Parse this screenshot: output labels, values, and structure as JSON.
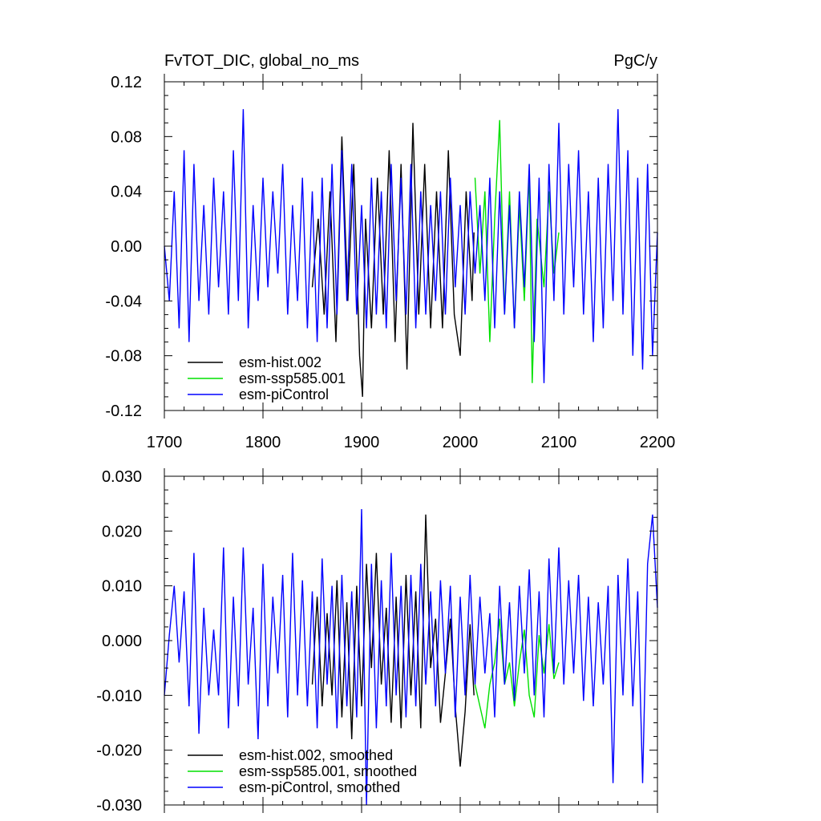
{
  "chart_data": [
    {
      "type": "line",
      "title": "FvTOT_DIC, global_no_ms",
      "units": "PgC/y",
      "xlim": [
        1700,
        2200
      ],
      "ylim": [
        -0.12,
        0.12
      ],
      "xticks": [
        1700,
        1800,
        1900,
        2000,
        2100,
        2200
      ],
      "xtick_labels": [
        "1700",
        "1800",
        "1900",
        "2000",
        "2100",
        "2200"
      ],
      "yticks": [
        -0.12,
        -0.08,
        -0.04,
        0.0,
        0.04,
        0.08,
        0.12
      ],
      "ytick_labels": [
        "-0.12",
        "-0.08",
        "-0.04",
        "0.00",
        "0.04",
        "0.08",
        "0.12"
      ],
      "grid": false,
      "legend_position": "bottom-left",
      "series": [
        {
          "name": "esm-hist.002",
          "color": "#000000",
          "x": [
            1850,
            1856,
            1862,
            1868,
            1874,
            1880,
            1886,
            1892,
            1898,
            1901,
            1904,
            1910,
            1916,
            1922,
            1928,
            1934,
            1940,
            1946,
            1952,
            1958,
            1964,
            1970,
            1976,
            1982,
            1988,
            1994,
            2000,
            2006,
            2012,
            2014
          ],
          "y": [
            -0.03,
            0.02,
            -0.05,
            0.04,
            -0.07,
            0.08,
            -0.04,
            0.06,
            -0.08,
            -0.11,
            0.02,
            -0.06,
            0.05,
            -0.05,
            0.07,
            -0.07,
            0.06,
            -0.09,
            0.09,
            -0.05,
            0.06,
            -0.06,
            0.04,
            -0.06,
            0.07,
            -0.05,
            -0.08,
            0.04,
            -0.04,
            0.01
          ]
        },
        {
          "name": "esm-ssp585.001",
          "color": "#00e000",
          "x": [
            2015,
            2020,
            2025,
            2030,
            2035,
            2040,
            2045,
            2050,
            2055,
            2060,
            2065,
            2070,
            2073,
            2078,
            2085,
            2090,
            2095,
            2100
          ],
          "y": [
            0.05,
            -0.02,
            0.04,
            -0.07,
            0.02,
            0.092,
            -0.05,
            0.04,
            -0.06,
            0.03,
            -0.04,
            0.055,
            -0.1,
            0.02,
            -0.03,
            0.04,
            -0.02,
            0.01
          ]
        },
        {
          "name": "esm-piControl",
          "color": "#0000ff",
          "x": [
            1700,
            1705,
            1710,
            1715,
            1720,
            1725,
            1730,
            1735,
            1740,
            1745,
            1750,
            1755,
            1760,
            1765,
            1770,
            1775,
            1780,
            1785,
            1790,
            1795,
            1800,
            1805,
            1810,
            1815,
            1820,
            1825,
            1830,
            1835,
            1840,
            1845,
            1850,
            1855,
            1860,
            1865,
            1870,
            1875,
            1880,
            1885,
            1890,
            1895,
            1900,
            1905,
            1910,
            1915,
            1920,
            1925,
            1930,
            1935,
            1940,
            1945,
            1950,
            1955,
            1960,
            1965,
            1970,
            1975,
            1980,
            1985,
            1990,
            1995,
            2000,
            2005,
            2010,
            2015,
            2020,
            2025,
            2030,
            2035,
            2040,
            2045,
            2050,
            2055,
            2060,
            2065,
            2070,
            2075,
            2080,
            2085,
            2090,
            2095,
            2100,
            2105,
            2110,
            2115,
            2120,
            2125,
            2130,
            2135,
            2140,
            2145,
            2150,
            2155,
            2160,
            2165,
            2170,
            2175,
            2180,
            2185,
            2190,
            2195,
            2200
          ],
          "y": [
            0.0,
            -0.04,
            0.04,
            -0.06,
            0.07,
            -0.07,
            0.06,
            -0.04,
            0.03,
            -0.05,
            0.05,
            -0.03,
            0.04,
            -0.05,
            0.07,
            -0.04,
            0.1,
            -0.06,
            0.03,
            -0.04,
            0.05,
            -0.03,
            0.04,
            -0.02,
            0.06,
            -0.05,
            0.03,
            -0.04,
            0.05,
            -0.06,
            0.04,
            -0.07,
            0.05,
            -0.06,
            0.06,
            -0.05,
            0.07,
            -0.04,
            0.06,
            -0.05,
            0.03,
            -0.06,
            0.05,
            -0.05,
            0.04,
            -0.06,
            0.06,
            -0.04,
            0.05,
            -0.05,
            0.06,
            -0.06,
            0.04,
            -0.05,
            0.03,
            -0.04,
            0.04,
            -0.05,
            0.05,
            -0.03,
            0.03,
            -0.05,
            0.04,
            -0.02,
            0.03,
            -0.04,
            0.05,
            -0.06,
            0.04,
            -0.05,
            0.03,
            -0.06,
            0.04,
            -0.03,
            0.06,
            -0.07,
            0.05,
            -0.1,
            0.06,
            -0.04,
            0.09,
            -0.05,
            0.06,
            -0.03,
            0.07,
            -0.05,
            0.04,
            -0.07,
            0.05,
            -0.06,
            0.06,
            -0.04,
            0.1,
            -0.05,
            0.07,
            -0.08,
            0.05,
            -0.09,
            0.06,
            -0.08,
            0.01
          ]
        }
      ]
    },
    {
      "type": "line",
      "title": "",
      "xlim": [
        1700,
        2200
      ],
      "ylim": [
        -0.03,
        0.03
      ],
      "yticks": [
        -0.03,
        -0.02,
        -0.01,
        0.0,
        0.01,
        0.02,
        0.03
      ],
      "ytick_labels": [
        "-0.030",
        "-0.020",
        "-0.010",
        "0.000",
        "0.010",
        "0.020",
        "0.030"
      ],
      "grid": false,
      "legend_position": "bottom-left",
      "series": [
        {
          "name": "esm-hist.002, smoothed",
          "color": "#000000",
          "x": [
            1850,
            1855,
            1860,
            1865,
            1870,
            1875,
            1880,
            1885,
            1890,
            1895,
            1900,
            1905,
            1910,
            1915,
            1920,
            1925,
            1930,
            1935,
            1940,
            1945,
            1950,
            1955,
            1960,
            1965,
            1970,
            1975,
            1980,
            1985,
            1990,
            1995,
            2000,
            2005,
            2010,
            2014
          ],
          "y": [
            -0.008,
            0.008,
            -0.012,
            0.005,
            -0.01,
            0.011,
            -0.014,
            0.007,
            -0.018,
            0.01,
            -0.012,
            0.014,
            -0.005,
            0.016,
            -0.008,
            0.006,
            -0.015,
            0.008,
            -0.016,
            0.012,
            -0.01,
            0.009,
            -0.016,
            0.023,
            -0.005,
            0.004,
            -0.015,
            -0.006,
            0.004,
            -0.012,
            -0.023,
            -0.013,
            0.003,
            -0.01
          ]
        },
        {
          "name": "esm-ssp585.001, smoothed",
          "color": "#00e000",
          "x": [
            2015,
            2020,
            2025,
            2030,
            2035,
            2040,
            2045,
            2050,
            2055,
            2060,
            2065,
            2070,
            2075,
            2080,
            2085,
            2090,
            2095,
            2100
          ],
          "y": [
            -0.008,
            -0.012,
            -0.016,
            -0.008,
            -0.004,
            0.004,
            -0.008,
            -0.004,
            -0.012,
            -0.004,
            0.002,
            -0.01,
            -0.014,
            0.001,
            -0.006,
            0.003,
            -0.007,
            -0.004
          ]
        },
        {
          "name": "esm-piControl, smoothed",
          "color": "#0000ff",
          "x": [
            1700,
            1705,
            1710,
            1715,
            1720,
            1725,
            1730,
            1735,
            1740,
            1745,
            1750,
            1755,
            1760,
            1765,
            1770,
            1775,
            1780,
            1785,
            1790,
            1795,
            1800,
            1805,
            1810,
            1815,
            1820,
            1825,
            1830,
            1835,
            1840,
            1845,
            1850,
            1855,
            1860,
            1865,
            1870,
            1875,
            1880,
            1885,
            1890,
            1895,
            1900,
            1905,
            1910,
            1915,
            1920,
            1925,
            1930,
            1935,
            1940,
            1945,
            1950,
            1955,
            1960,
            1965,
            1970,
            1975,
            1980,
            1985,
            1990,
            1995,
            2000,
            2005,
            2010,
            2015,
            2020,
            2025,
            2030,
            2035,
            2040,
            2045,
            2050,
            2055,
            2060,
            2065,
            2070,
            2075,
            2080,
            2085,
            2090,
            2095,
            2100,
            2105,
            2110,
            2115,
            2120,
            2125,
            2130,
            2135,
            2140,
            2145,
            2150,
            2155,
            2160,
            2165,
            2170,
            2175,
            2180,
            2185,
            2190,
            2195,
            2200
          ],
          "y": [
            -0.01,
            0.001,
            0.01,
            -0.004,
            0.009,
            -0.012,
            0.016,
            -0.017,
            0.006,
            -0.01,
            0.002,
            -0.01,
            0.017,
            -0.016,
            0.008,
            -0.012,
            0.017,
            -0.008,
            0.006,
            -0.018,
            0.014,
            -0.012,
            0.008,
            -0.006,
            0.012,
            -0.014,
            0.016,
            -0.01,
            0.011,
            -0.012,
            0.009,
            -0.016,
            0.015,
            -0.008,
            0.01,
            -0.016,
            0.012,
            -0.012,
            0.009,
            -0.014,
            0.024,
            -0.03,
            0.014,
            -0.016,
            0.011,
            -0.012,
            0.016,
            -0.01,
            0.01,
            -0.014,
            0.012,
            -0.012,
            0.014,
            -0.008,
            0.009,
            -0.012,
            0.011,
            -0.006,
            0.01,
            -0.014,
            0.008,
            -0.01,
            0.012,
            -0.008,
            0.008,
            -0.006,
            0.005,
            -0.014,
            0.01,
            -0.008,
            0.007,
            -0.011,
            0.01,
            -0.006,
            0.013,
            -0.01,
            0.009,
            -0.014,
            0.015,
            -0.006,
            0.017,
            -0.008,
            0.011,
            -0.006,
            0.012,
            -0.011,
            0.008,
            -0.012,
            0.007,
            -0.008,
            0.01,
            -0.026,
            0.012,
            -0.01,
            0.015,
            -0.012,
            0.009,
            -0.026,
            0.014,
            0.023,
            0.006
          ]
        }
      ]
    }
  ]
}
